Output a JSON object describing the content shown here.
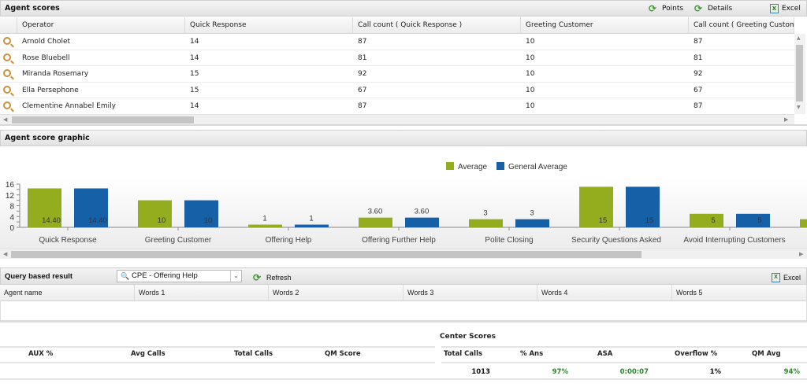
{
  "agent_scores": {
    "title": "Agent scores",
    "tools": {
      "points": "Points",
      "details": "Details",
      "excel": "Excel"
    },
    "columns": [
      "Operator",
      "Quick Response",
      "Call count ( Quick Response )",
      "Greeting Customer",
      "Call count ( Greeting Customer )"
    ],
    "rows": [
      [
        "Arnold Cholet",
        "14",
        "87",
        "10",
        "87"
      ],
      [
        "Rose Bluebell",
        "14",
        "81",
        "10",
        "81"
      ],
      [
        "Miranda Rosemary",
        "15",
        "92",
        "10",
        "92"
      ],
      [
        "Ella Persephone",
        "15",
        "67",
        "10",
        "67"
      ],
      [
        "Clementine Annabel Emily",
        "14",
        "87",
        "10",
        "87"
      ]
    ]
  },
  "graphic": {
    "title": "Agent score graphic"
  },
  "chart_data": {
    "type": "bar",
    "categories": [
      "Quick Response",
      "Greeting Customer",
      "Offering Help",
      "Offering Further Help",
      "Polite Closing",
      "Security Questions Asked",
      "Avoid Interrupting Customers",
      ""
    ],
    "series": [
      {
        "name": "Average",
        "color": "#94ad1f",
        "values": [
          14.4,
          10,
          1,
          3.6,
          3,
          15,
          5,
          3
        ],
        "labels": [
          "14.40",
          "10",
          "1",
          "3.60",
          "3",
          "15",
          "5",
          ""
        ]
      },
      {
        "name": "General Average",
        "color": "#1660a8",
        "values": [
          14.4,
          10,
          1,
          3.6,
          3,
          15,
          5,
          null
        ],
        "labels": [
          "14.40",
          "10",
          "1",
          "3.60",
          "3",
          "15",
          "5",
          ""
        ]
      }
    ],
    "yticks": [
      "0",
      "4",
      "8",
      "12",
      "16"
    ],
    "ylim": [
      0,
      16
    ],
    "legend": "top-center",
    "grid": false
  },
  "query": {
    "title": "Query based result",
    "select_value": "CPE - Offering Help",
    "refresh": "Refresh",
    "excel": "Excel",
    "columns": [
      "Agent name",
      "Words 1",
      "Words 2",
      "Words 3",
      "Words 4",
      "Words 5"
    ]
  },
  "agent_stats": {
    "columns": [
      "AUX %",
      "Avg Calls",
      "Total Calls",
      "QM Score"
    ]
  },
  "center_scores": {
    "title": "Center Scores",
    "columns": [
      "Total Calls",
      "% Ans",
      "ASA",
      "Overflow %",
      "QM Avg"
    ],
    "values": [
      "1013",
      "97%",
      "0:00:07",
      "1%",
      "94%"
    ],
    "value_colors": [
      "#111111",
      "#2a8a2a",
      "#2a8a2a",
      "#111111",
      "#2a8a2a"
    ]
  }
}
